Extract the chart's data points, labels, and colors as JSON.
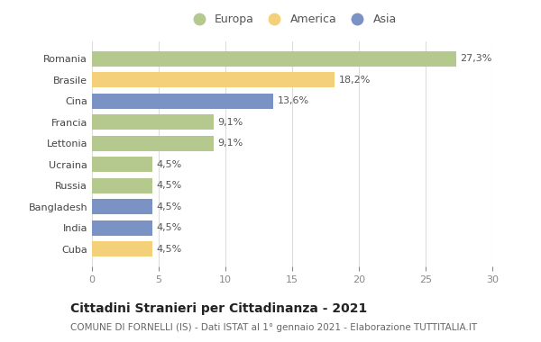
{
  "categories": [
    "Romania",
    "Brasile",
    "Cina",
    "Francia",
    "Lettonia",
    "Ucraina",
    "Russia",
    "Bangladesh",
    "India",
    "Cuba"
  ],
  "values": [
    27.3,
    18.2,
    13.6,
    9.1,
    9.1,
    4.5,
    4.5,
    4.5,
    4.5,
    4.5
  ],
  "labels": [
    "27,3%",
    "18,2%",
    "13,6%",
    "9,1%",
    "9,1%",
    "4,5%",
    "4,5%",
    "4,5%",
    "4,5%",
    "4,5%"
  ],
  "continents": [
    "Europa",
    "America",
    "Asia",
    "Europa",
    "Europa",
    "Europa",
    "Europa",
    "Asia",
    "Asia",
    "America"
  ],
  "colors": {
    "Europa": "#b5c98e",
    "America": "#f5d07a",
    "Asia": "#7b93c4"
  },
  "legend_items": [
    "Europa",
    "America",
    "Asia"
  ],
  "title": "Cittadini Stranieri per Cittadinanza - 2021",
  "subtitle": "COMUNE DI FORNELLI (IS) - Dati ISTAT al 1° gennaio 2021 - Elaborazione TUTTITALIA.IT",
  "xlim": [
    0,
    30
  ],
  "xticks": [
    0,
    5,
    10,
    15,
    20,
    25,
    30
  ],
  "bg_color": "#ffffff",
  "grid_color": "#dddddd",
  "bar_height": 0.72,
  "title_fontsize": 10,
  "subtitle_fontsize": 7.5,
  "label_fontsize": 8,
  "tick_fontsize": 8,
  "legend_fontsize": 9
}
